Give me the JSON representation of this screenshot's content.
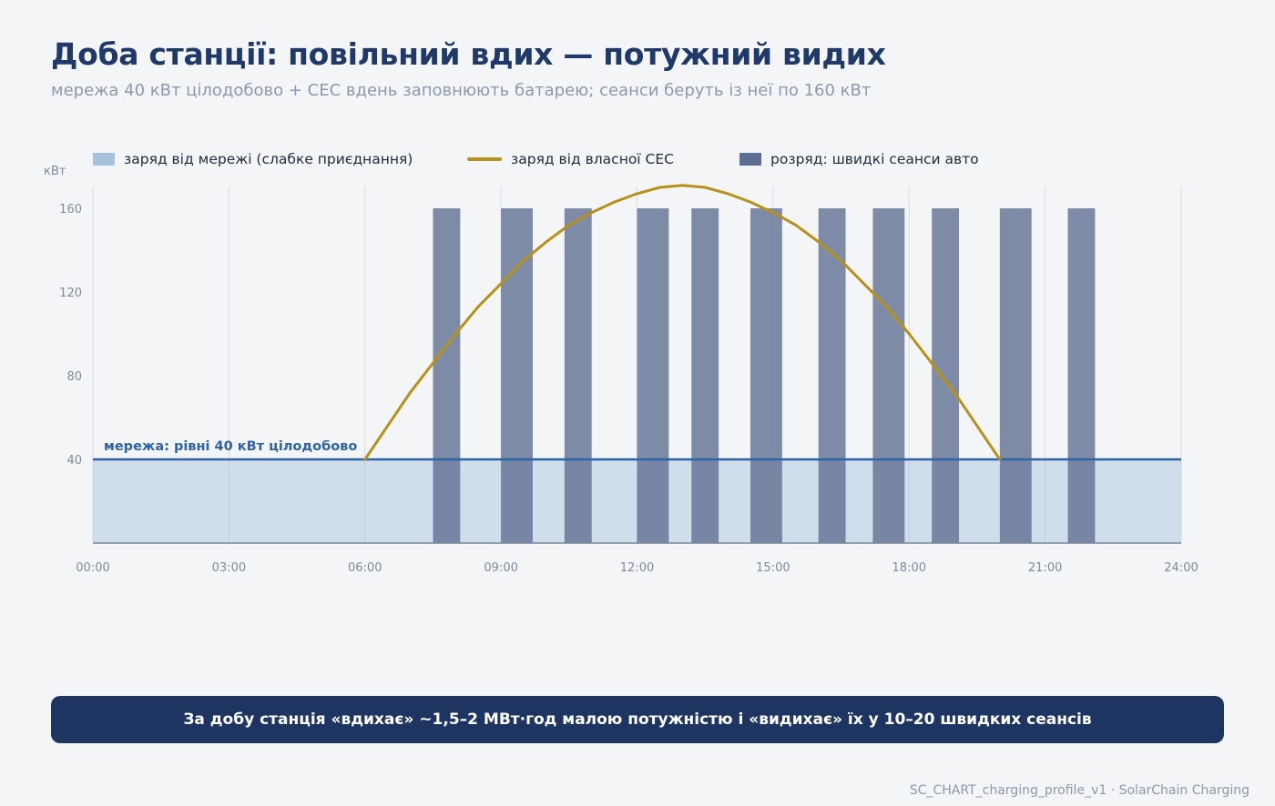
{
  "header": {
    "title": "Доба станції: повільний вдих — потужний видих",
    "subtitle": "мережа 40 кВт цілодобово + СЕС вдень заповнюють батарею; сеанси беруть із неї по 160 кВт"
  },
  "legend": {
    "grid_label": "заряд від мережі (слабке приєднання)",
    "solar_label": "заряд від власної СЕС",
    "discharge_label": "розряд: швидкі сеанси авто"
  },
  "banner": {
    "text": "За добу станція «вдихає» ~1,5–2 МВт·год малою потужністю і «видихає» їх у 10–20 швидких сеансів"
  },
  "footer": {
    "text": "SC_CHART_charging_profile_v1 · SolarChain Charging"
  },
  "colors": {
    "grid_fill": "#a7c0dc",
    "grid_line": "#2e64a6",
    "solar": "#b8911a",
    "discharge": "#5c6d90",
    "title": "#1f3a68",
    "banner_bg": "#1f3561"
  },
  "chart_data": {
    "type": "bar",
    "ylabel": "кВт",
    "xlim": [
      0,
      24
    ],
    "ylim": [
      0,
      170
    ],
    "yticks": [
      40,
      80,
      120,
      160
    ],
    "xticks": [
      "00:00",
      "03:00",
      "06:00",
      "09:00",
      "12:00",
      "15:00",
      "18:00",
      "21:00",
      "24:00"
    ],
    "grid": true,
    "grid_charge": {
      "name": "заряд від мережі (слабке приєднання)",
      "value": 40,
      "x": [
        0,
        24
      ],
      "annotation": "мережа: рівні 40 кВт цілодобово"
    },
    "solar_charge": {
      "name": "заряд від власної СЕС",
      "x": [
        6,
        6.5,
        7,
        7.5,
        8,
        8.5,
        9,
        9.5,
        10,
        10.5,
        11,
        11.5,
        12,
        12.5,
        13,
        13.5,
        14,
        14.5,
        15,
        15.5,
        16,
        16.5,
        17,
        17.5,
        18,
        18.5,
        19,
        19.5,
        20
      ],
      "y": [
        40,
        56,
        72,
        86,
        100,
        113,
        124,
        135,
        144,
        152,
        158,
        163,
        167,
        170,
        171,
        170,
        167,
        163,
        158,
        152,
        144,
        135,
        124,
        113,
        100,
        86,
        72,
        56,
        40
      ]
    },
    "discharge_sessions": {
      "name": "розряд: швидкі сеанси авто",
      "value": 160,
      "start": [
        7.5,
        9.0,
        10.4,
        12.0,
        13.2,
        14.5,
        16.0,
        17.2,
        18.5,
        20.0,
        21.5
      ],
      "end": [
        8.1,
        9.7,
        11.0,
        12.7,
        13.8,
        15.2,
        16.6,
        17.9,
        19.1,
        20.7,
        22.1
      ]
    }
  }
}
